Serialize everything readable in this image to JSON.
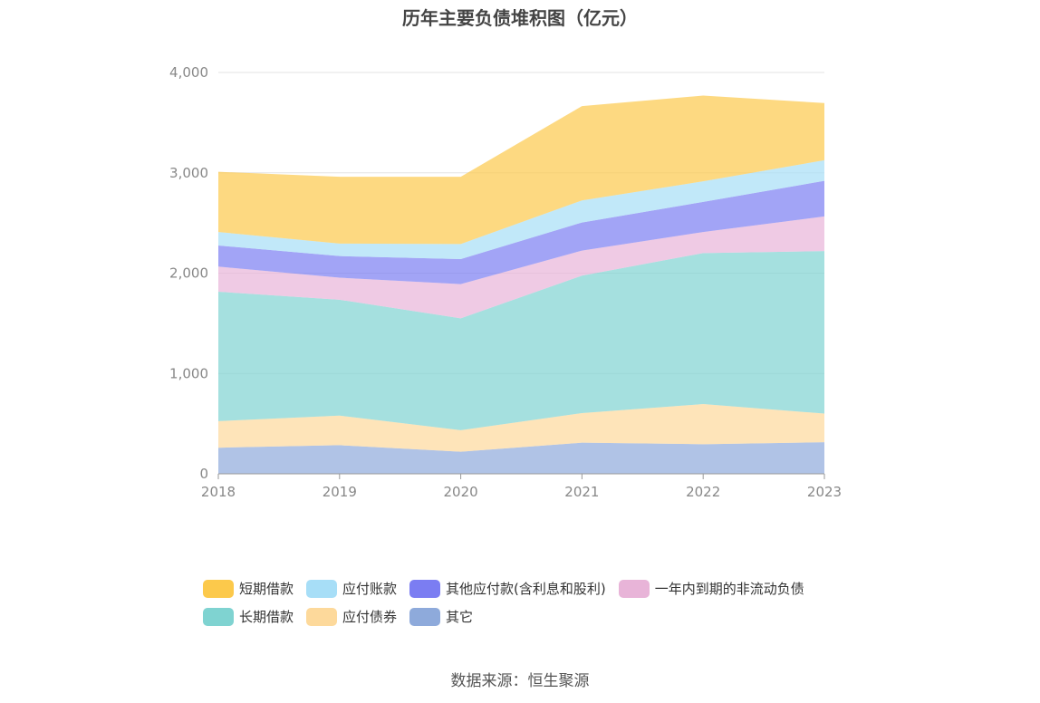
{
  "chart_data": {
    "type": "area",
    "stacked": true,
    "title": "历年主要负债堆积图（亿元）",
    "x": [
      "2018",
      "2019",
      "2020",
      "2021",
      "2022",
      "2023"
    ],
    "ylim": [
      0,
      4000
    ],
    "yticks": [
      0,
      1000,
      2000,
      3000,
      4000
    ],
    "ytick_labels": [
      "0",
      "1,000",
      "2,000",
      "3,000",
      "4,000"
    ],
    "grid": true,
    "legend_position": "bottom",
    "series": [
      {
        "name": "其它",
        "color": "#8eaadb",
        "values": [
          260,
          285,
          220,
          310,
          295,
          315
        ]
      },
      {
        "name": "应付债券",
        "color": "#fdd99b",
        "values": [
          265,
          295,
          215,
          295,
          400,
          285
        ]
      },
      {
        "name": "长期借款",
        "color": "#7fd3d1",
        "values": [
          1290,
          1155,
          1115,
          1370,
          1505,
          1620
        ]
      },
      {
        "name": "一年内到期的非流动负债",
        "color": "#e8b4d8",
        "values": [
          250,
          220,
          340,
          250,
          210,
          345
        ]
      },
      {
        "name": "其他应付款(含利息和股利)",
        "color": "#7b7df2",
        "values": [
          210,
          215,
          250,
          280,
          300,
          355
        ]
      },
      {
        "name": "应付账款",
        "color": "#a7def7",
        "values": [
          135,
          125,
          150,
          220,
          205,
          205
        ]
      },
      {
        "name": "短期借款",
        "color": "#fcc94b",
        "values": [
          600,
          665,
          670,
          940,
          855,
          570
        ]
      }
    ],
    "legend_order": [
      "短期借款",
      "应付账款",
      "其他应付款(含利息和股利)",
      "一年内到期的非流动负债",
      "长期借款",
      "应付债券",
      "其它"
    ]
  },
  "footer": {
    "source": "数据来源：恒生聚源"
  }
}
